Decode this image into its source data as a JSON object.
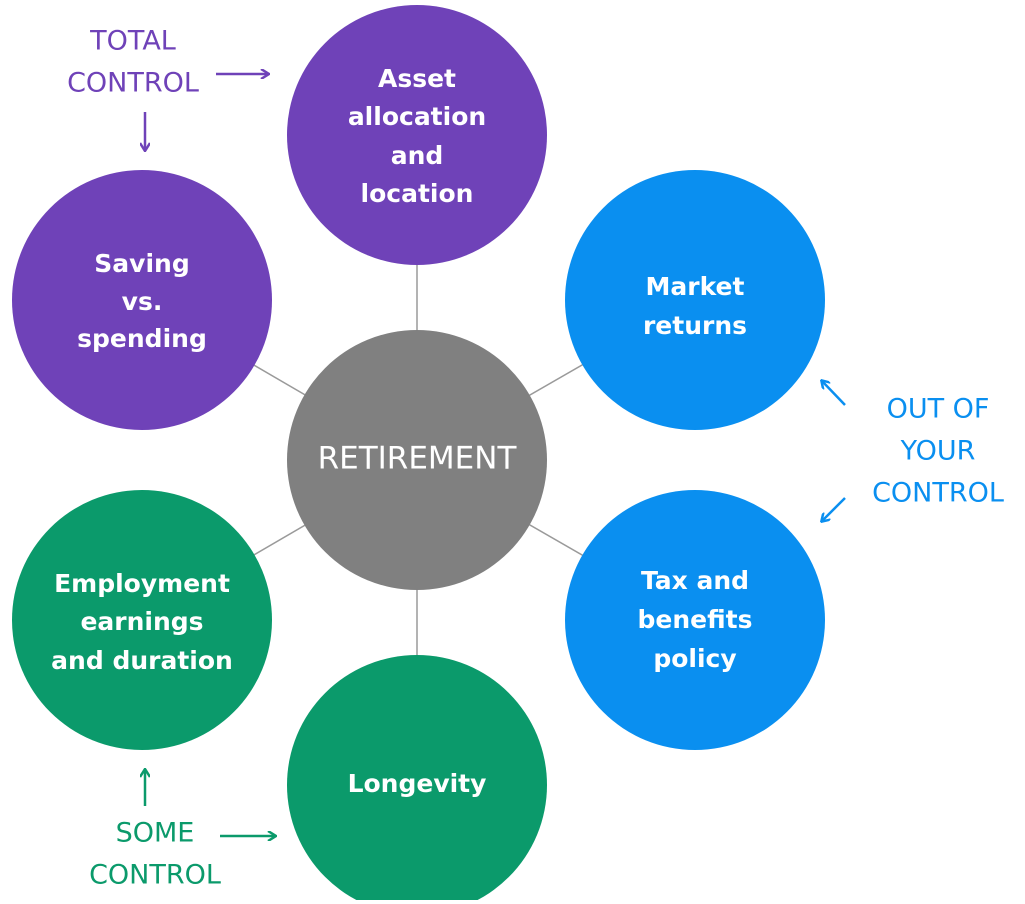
{
  "center": {
    "label": "RETIREMENT"
  },
  "nodes": [
    {
      "lines": [
        "Asset",
        "allocation",
        "and",
        "location"
      ]
    },
    {
      "lines": [
        "Saving",
        "vs.",
        "spending"
      ]
    },
    {
      "lines": [
        "Market",
        "returns"
      ]
    },
    {
      "lines": [
        "Tax and",
        "benefits",
        "policy"
      ]
    },
    {
      "lines": [
        "Employment",
        "earnings",
        "and duration"
      ]
    },
    {
      "lines": [
        "Longevity"
      ]
    }
  ],
  "annotations": [
    {
      "lines": [
        "TOTAL",
        "CONTROL"
      ]
    },
    {
      "lines": [
        "OUT OF",
        "YOUR",
        "CONTROL"
      ]
    },
    {
      "lines": [
        "SOME",
        "CONTROL"
      ]
    }
  ]
}
